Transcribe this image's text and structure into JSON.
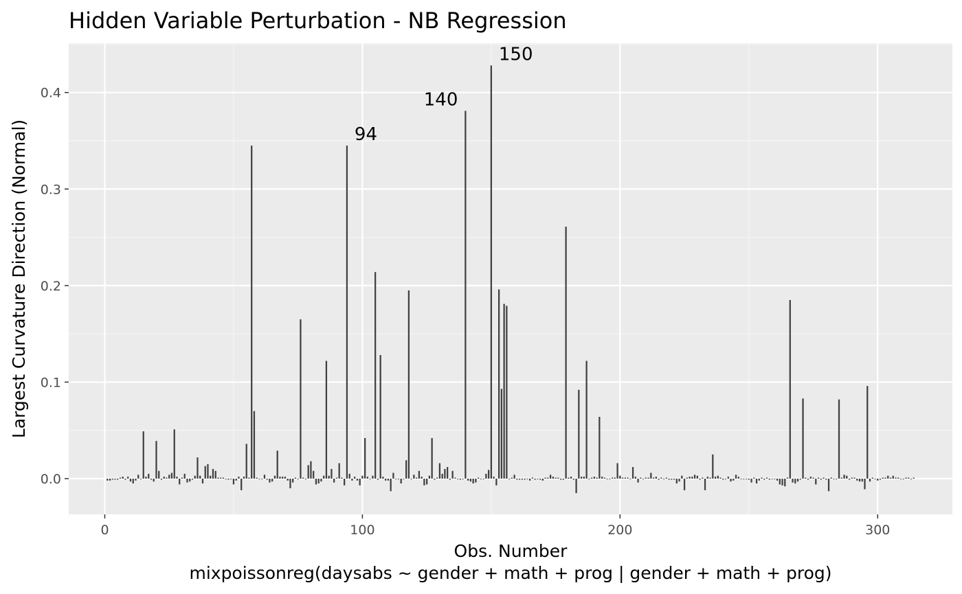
{
  "chart_data": {
    "type": "bar",
    "title": "Hidden Variable Perturbation - NB Regression",
    "xlabel": "Obs. Number",
    "xlabel_sub": "mixpoissonreg(daysabs ~ gender + math + prog | gender + math + prog)",
    "ylabel": "Largest Curvature Direction (Normal)",
    "xlim": [
      -14,
      329
    ],
    "ylim": [
      -0.037,
      0.451
    ],
    "x_ticks": [
      0,
      100,
      200,
      300
    ],
    "x_tick_labels": [
      "0",
      "100",
      "200",
      "300"
    ],
    "y_ticks": [
      0.0,
      0.1,
      0.2,
      0.3,
      0.4
    ],
    "y_tick_labels": [
      "0.0",
      "0.1",
      "0.2",
      "0.3",
      "0.4"
    ],
    "grid": true,
    "bar_color": "#404040",
    "panel_background": "#ebebeb",
    "annotations": [
      {
        "x": 94,
        "y": 0.345,
        "label": "94"
      },
      {
        "x": 140,
        "y": 0.381,
        "label": "140"
      },
      {
        "x": 150,
        "y": 0.428,
        "label": "150"
      }
    ],
    "values": [
      -0.002,
      -0.002,
      -0.001,
      -0.001,
      -0.001,
      0.001,
      0.002,
      -0.001,
      0.002,
      -0.003,
      -0.005,
      -0.002,
      0.004,
      0.0,
      0.049,
      0.002,
      0.005,
      -0.001,
      -0.003,
      0.039,
      0.008,
      -0.001,
      0.002,
      0.001,
      0.004,
      0.006,
      0.051,
      0.002,
      -0.006,
      0.001,
      0.005,
      -0.004,
      -0.003,
      -0.001,
      0.003,
      0.022,
      0.003,
      -0.005,
      0.013,
      0.015,
      0.003,
      0.01,
      0.008,
      0.001,
      0.001,
      0.001,
      0.0,
      -0.001,
      0.0,
      -0.006,
      -0.002,
      0.002,
      -0.012,
      0.002,
      0.036,
      0.001,
      0.345,
      0.07,
      0.001,
      0.0,
      0.0,
      0.004,
      -0.001,
      -0.004,
      -0.003,
      0.003,
      0.029,
      0.002,
      0.002,
      0.002,
      -0.002,
      -0.01,
      -0.004,
      0.001,
      0.0,
      0.165,
      0.001,
      0.0,
      0.014,
      0.018,
      0.008,
      -0.006,
      -0.005,
      -0.003,
      0.003,
      0.122,
      0.003,
      0.01,
      -0.004,
      0.001,
      0.016,
      0.001,
      -0.007,
      0.345,
      0.005,
      -0.002,
      0.002,
      -0.002,
      -0.007,
      0.003,
      0.042,
      0.002,
      0.0,
      0.003,
      0.214,
      -0.001,
      0.128,
      0.002,
      -0.002,
      -0.002,
      -0.013,
      0.006,
      0.0,
      0.0,
      -0.005,
      0.0,
      0.019,
      0.195,
      0.0,
      0.004,
      0.001,
      0.008,
      0.002,
      -0.007,
      -0.006,
      0.003,
      0.042,
      -0.001,
      0.001,
      0.016,
      0.005,
      0.01,
      0.012,
      -0.001,
      0.008,
      0.001,
      0.0,
      -0.001,
      0.0,
      0.381,
      -0.002,
      -0.003,
      -0.005,
      -0.004,
      0.001,
      0.0,
      0.0,
      0.005,
      0.009,
      0.428,
      0.002,
      -0.007,
      0.196,
      0.093,
      0.181,
      0.179,
      0.0,
      0.001,
      0.004,
      -0.001,
      -0.001,
      -0.001,
      -0.001,
      0.0,
      -0.002,
      0.001,
      -0.001,
      0.0,
      -0.001,
      -0.002,
      0.001,
      0.001,
      0.004,
      0.002,
      0.001,
      0.001,
      -0.001,
      -0.001,
      0.261,
      0.001,
      0.002,
      -0.001,
      -0.015,
      0.092,
      0.002,
      0.002,
      0.122,
      0.0,
      0.001,
      0.002,
      0.001,
      0.064,
      0.002,
      0.001,
      0.0,
      0.0,
      0.001,
      0.001,
      0.016,
      0.003,
      0.001,
      0.001,
      0.001,
      0.0,
      0.012,
      0.002,
      -0.004,
      0.001,
      0.0,
      0.001,
      0.001,
      0.006,
      0.001,
      0.002,
      -0.001,
      0.001,
      0.0,
      0.001,
      -0.001,
      -0.001,
      -0.001,
      -0.005,
      -0.003,
      0.003,
      -0.012,
      0.001,
      0.002,
      0.002,
      0.004,
      0.003,
      -0.001,
      0.001,
      -0.012,
      0.002,
      0.001,
      0.025,
      0.002,
      0.003,
      0.001,
      -0.001,
      0.0,
      0.002,
      -0.003,
      -0.002,
      0.004,
      0.002,
      0.0,
      0.0,
      0.0,
      -0.001,
      -0.004,
      0.001,
      -0.005,
      -0.002,
      0.001,
      -0.001,
      0.001,
      -0.001,
      0.0,
      0.0,
      -0.002,
      -0.006,
      -0.007,
      -0.008,
      0.001,
      0.185,
      -0.004,
      -0.005,
      -0.003,
      -0.001,
      0.083,
      0.001,
      -0.001,
      0.002,
      0.001,
      -0.006,
      0.001,
      -0.001,
      0.001,
      -0.001,
      -0.013,
      0.001,
      0.0,
      0.0,
      0.082,
      0.001,
      0.004,
      0.003,
      -0.001,
      0.001,
      0.001,
      -0.002,
      -0.003,
      -0.003,
      -0.011,
      0.096,
      -0.003,
      0.001,
      0.0,
      -0.002,
      -0.001,
      0.001,
      0.001,
      0.003,
      0.001,
      0.003,
      0.001,
      0.001,
      0.0,
      0.0,
      0.001,
      0.001,
      0.0,
      0.001
    ]
  }
}
